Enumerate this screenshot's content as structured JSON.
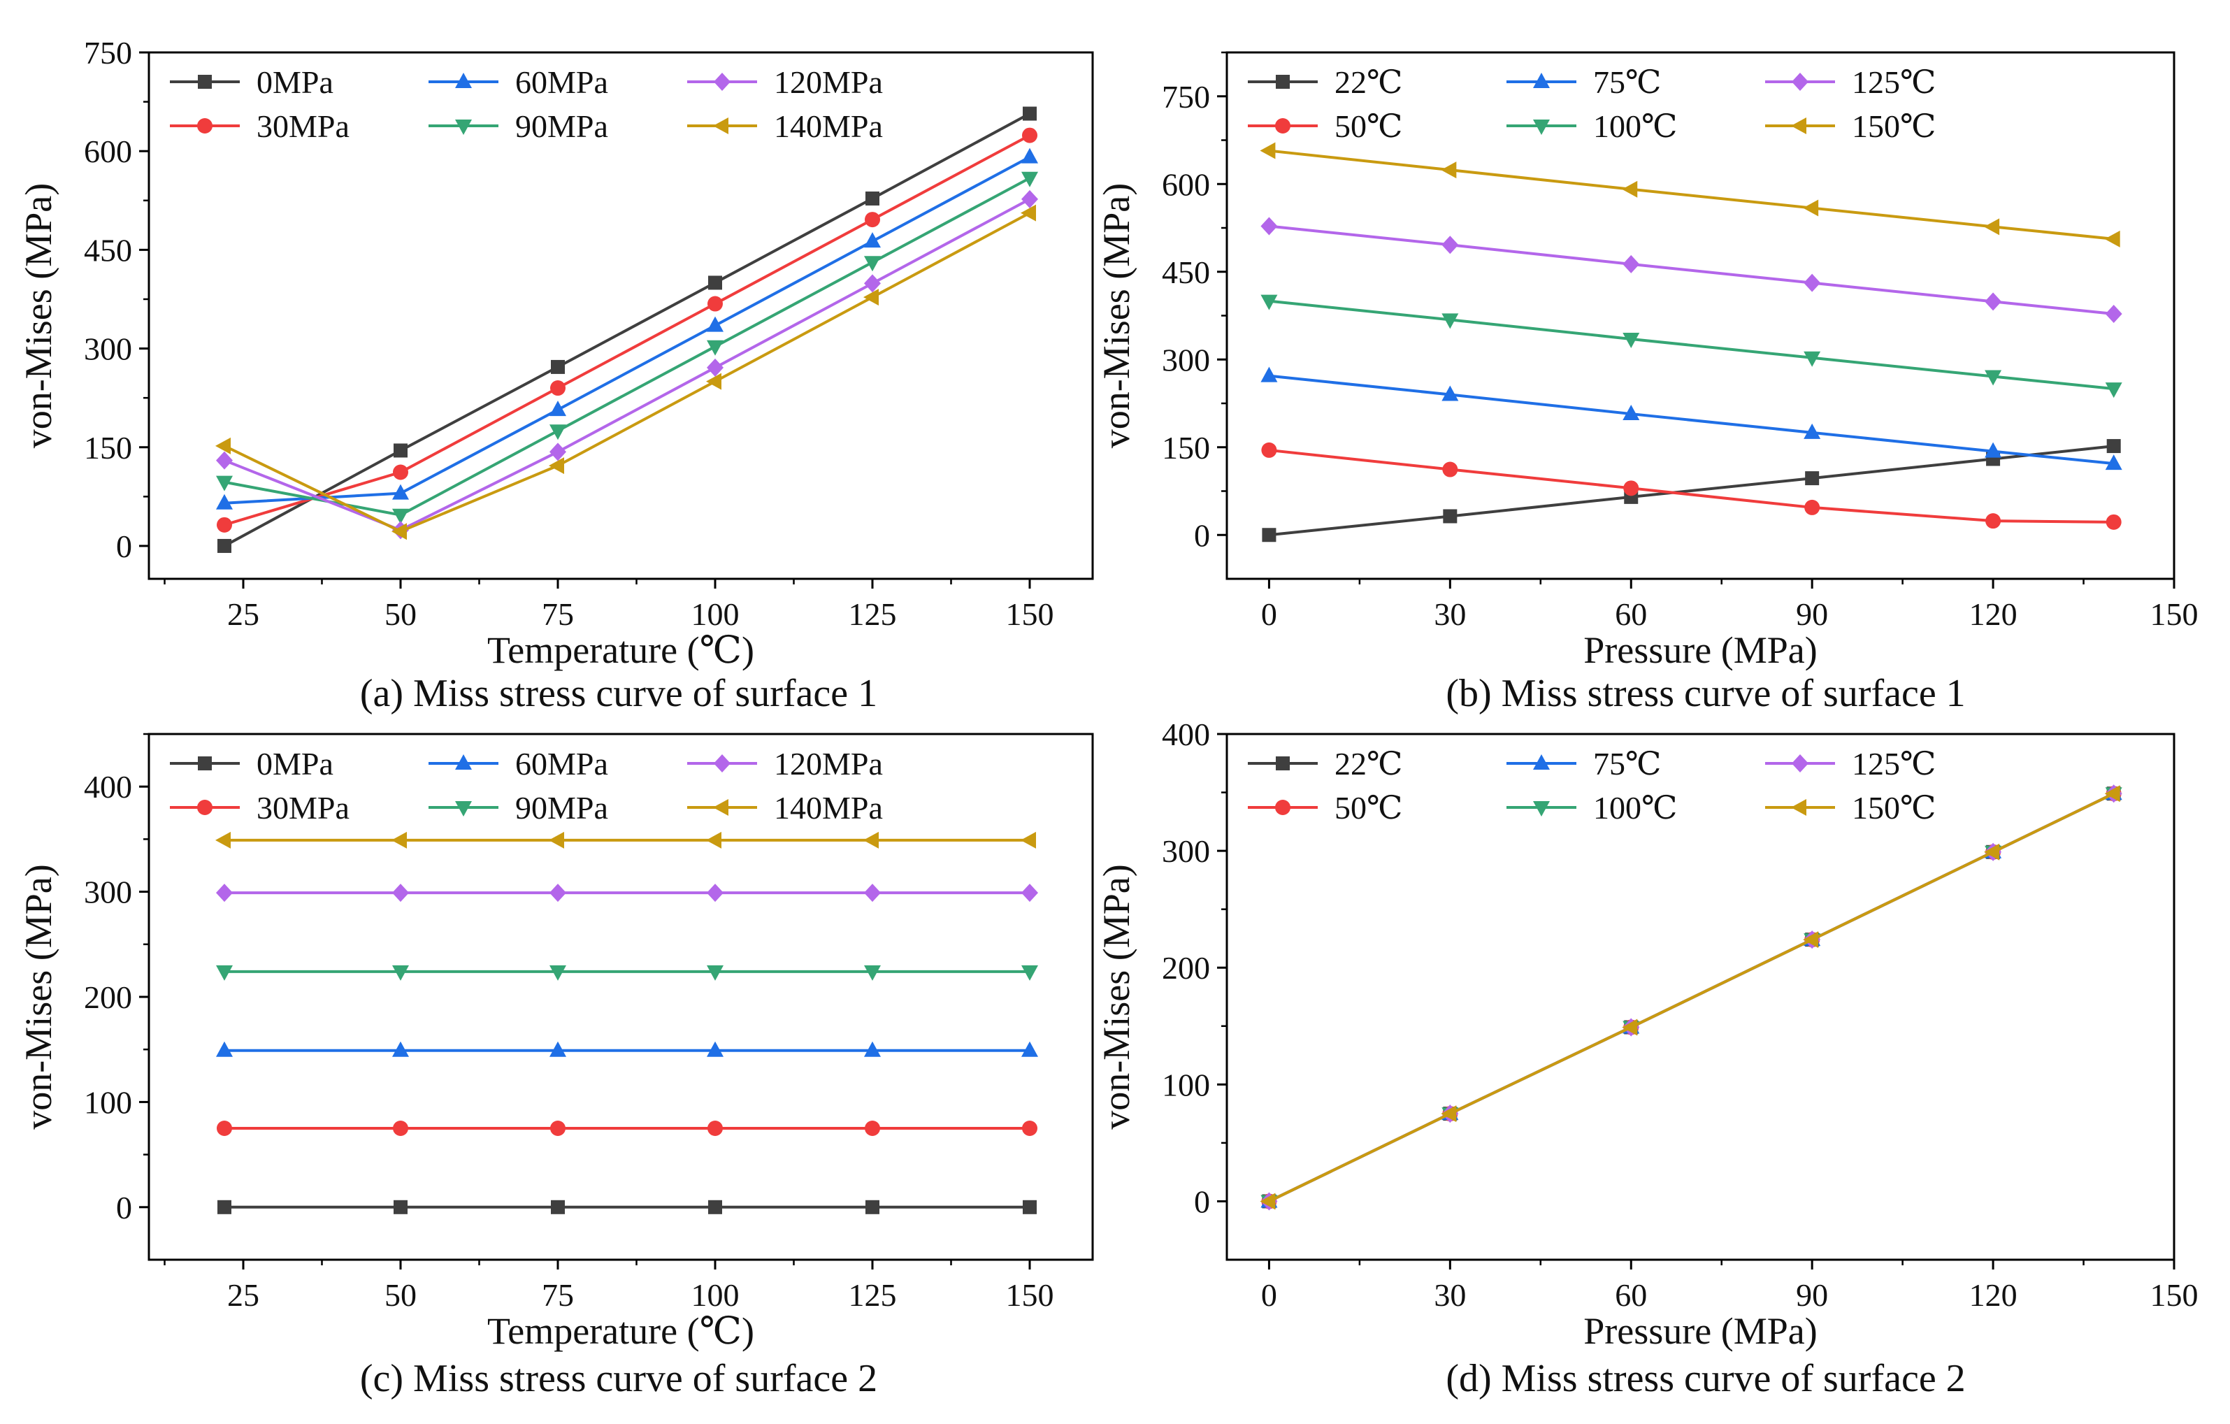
{
  "figure": {
    "captions": [
      "(a) Miss stress curve of surface 1",
      "(b) Miss stress curve of surface 1",
      "(c) Miss stress curve of surface 2",
      "(d) Miss stress curve of surface 2"
    ]
  },
  "colors": {
    "gray": "#3f3f3f",
    "red": "#f03c3c",
    "blue": "#1f6fe6",
    "green": "#35a574",
    "purple": "#b366ea",
    "gold": "#c99a10"
  },
  "chart_data": [
    {
      "id": "a",
      "type": "line",
      "title": "(a) Miss stress curve of surface 1",
      "xlabel": "Temperature (℃)",
      "ylabel": "von-Mises (MPa)",
      "xlim": [
        10,
        160
      ],
      "ylim": [
        -50,
        750
      ],
      "xticks": [
        25,
        50,
        75,
        100,
        125,
        150
      ],
      "yticks": [
        0,
        150,
        300,
        450,
        600,
        750
      ],
      "xtick_labels": [
        "25",
        "50",
        "75",
        "100",
        "125",
        "150"
      ],
      "ytick_labels": [
        "0",
        "150",
        "300",
        "450",
        "600",
        "750"
      ],
      "x": [
        22,
        50,
        75,
        100,
        125,
        150
      ],
      "series": [
        {
          "name": "0MPa",
          "marker": "square",
          "color": "gray",
          "values": [
            0,
            145,
            272,
            400,
            528,
            657
          ]
        },
        {
          "name": "30MPa",
          "marker": "circle",
          "color": "red",
          "values": [
            32,
            112,
            240,
            368,
            496,
            624
          ]
        },
        {
          "name": "60MPa",
          "marker": "triangle-up",
          "color": "blue",
          "values": [
            65,
            80,
            207,
            335,
            463,
            591
          ]
        },
        {
          "name": "90MPa",
          "marker": "triangle-down",
          "color": "green",
          "values": [
            97,
            47,
            175,
            303,
            431,
            559
          ]
        },
        {
          "name": "120MPa",
          "marker": "diamond",
          "color": "purple",
          "values": [
            130,
            24,
            143,
            271,
            399,
            527
          ]
        },
        {
          "name": "140MPa",
          "marker": "triangle-left",
          "color": "gold",
          "values": [
            152,
            22,
            122,
            250,
            378,
            506
          ]
        }
      ]
    },
    {
      "id": "b",
      "type": "line",
      "title": "(b) Miss stress curve of surface 1",
      "xlabel": "Pressure (MPa)",
      "ylabel": "von-Mises (MPa)",
      "xlim": [
        -7,
        150
      ],
      "ylim": [
        -75,
        825
      ],
      "xticks": [
        0,
        30,
        60,
        90,
        120,
        150
      ],
      "yticks": [
        0,
        150,
        300,
        450,
        600,
        750
      ],
      "xtick_labels": [
        "0",
        "30",
        "60",
        "90",
        "120",
        "150"
      ],
      "ytick_labels": [
        "0",
        "150",
        "300",
        "450",
        "600",
        "750"
      ],
      "x": [
        0,
        30,
        60,
        90,
        120,
        140
      ],
      "series": [
        {
          "name": "22℃",
          "marker": "square",
          "color": "gray",
          "values": [
            0,
            32,
            65,
            97,
            130,
            152
          ]
        },
        {
          "name": "50℃",
          "marker": "circle",
          "color": "red",
          "values": [
            145,
            112,
            80,
            47,
            24,
            22
          ]
        },
        {
          "name": "75℃",
          "marker": "triangle-up",
          "color": "blue",
          "values": [
            272,
            240,
            207,
            175,
            143,
            122
          ]
        },
        {
          "name": "100℃",
          "marker": "triangle-down",
          "color": "green",
          "values": [
            400,
            368,
            335,
            303,
            271,
            250
          ]
        },
        {
          "name": "125℃",
          "marker": "diamond",
          "color": "purple",
          "values": [
            528,
            496,
            463,
            431,
            399,
            378
          ]
        },
        {
          "name": "150℃",
          "marker": "triangle-left",
          "color": "gold",
          "values": [
            657,
            624,
            591,
            559,
            527,
            506
          ]
        }
      ]
    },
    {
      "id": "c",
      "type": "line",
      "title": "(c) Miss stress curve of surface 2",
      "xlabel": "Temperature (℃)",
      "ylabel": "von-Mises (MPa)",
      "xlim": [
        10,
        160
      ],
      "ylim": [
        -50,
        450
      ],
      "xticks": [
        25,
        50,
        75,
        100,
        125,
        150
      ],
      "yticks": [
        0,
        100,
        200,
        300,
        400
      ],
      "xtick_labels": [
        "25",
        "50",
        "75",
        "100",
        "125",
        "150"
      ],
      "ytick_labels": [
        "0",
        "100",
        "200",
        "300",
        "400"
      ],
      "x": [
        22,
        50,
        75,
        100,
        125,
        150
      ],
      "series": [
        {
          "name": "0MPa",
          "marker": "square",
          "color": "gray",
          "values": [
            0,
            0,
            0,
            0,
            0,
            0
          ]
        },
        {
          "name": "30MPa",
          "marker": "circle",
          "color": "red",
          "values": [
            75,
            75,
            75,
            75,
            75,
            75
          ]
        },
        {
          "name": "60MPa",
          "marker": "triangle-up",
          "color": "blue",
          "values": [
            149,
            149,
            149,
            149,
            149,
            149
          ]
        },
        {
          "name": "90MPa",
          "marker": "triangle-down",
          "color": "green",
          "values": [
            224,
            224,
            224,
            224,
            224,
            224
          ]
        },
        {
          "name": "120MPa",
          "marker": "diamond",
          "color": "purple",
          "values": [
            299,
            299,
            299,
            299,
            299,
            299
          ]
        },
        {
          "name": "140MPa",
          "marker": "triangle-left",
          "color": "gold",
          "values": [
            349,
            349,
            349,
            349,
            349,
            349
          ]
        }
      ]
    },
    {
      "id": "d",
      "type": "line",
      "title": "(d) Miss stress curve of surface 2",
      "xlabel": "Pressure (MPa)",
      "ylabel": "von-Mises (MPa)",
      "xlim": [
        -7,
        150
      ],
      "ylim": [
        -50,
        400
      ],
      "xticks": [
        0,
        30,
        60,
        90,
        120,
        150
      ],
      "yticks": [
        0,
        100,
        200,
        300,
        400
      ],
      "xtick_labels": [
        "0",
        "30",
        "60",
        "90",
        "120",
        "150"
      ],
      "ytick_labels": [
        "0",
        "100",
        "200",
        "300",
        "400"
      ],
      "x": [
        0,
        30,
        60,
        90,
        120,
        140
      ],
      "series": [
        {
          "name": "22℃",
          "marker": "square",
          "color": "gray",
          "values": [
            0,
            75,
            149,
            224,
            299,
            349
          ]
        },
        {
          "name": "50℃",
          "marker": "circle",
          "color": "red",
          "values": [
            0,
            75,
            149,
            224,
            299,
            349
          ]
        },
        {
          "name": "75℃",
          "marker": "triangle-up",
          "color": "blue",
          "values": [
            0,
            75,
            149,
            224,
            299,
            349
          ]
        },
        {
          "name": "100℃",
          "marker": "triangle-down",
          "color": "green",
          "values": [
            0,
            75,
            149,
            224,
            299,
            349
          ]
        },
        {
          "name": "125℃",
          "marker": "diamond",
          "color": "purple",
          "values": [
            0,
            75,
            149,
            224,
            299,
            349
          ]
        },
        {
          "name": "150℃",
          "marker": "triangle-left",
          "color": "gold",
          "values": [
            0,
            75,
            149,
            224,
            299,
            349
          ]
        }
      ]
    }
  ]
}
